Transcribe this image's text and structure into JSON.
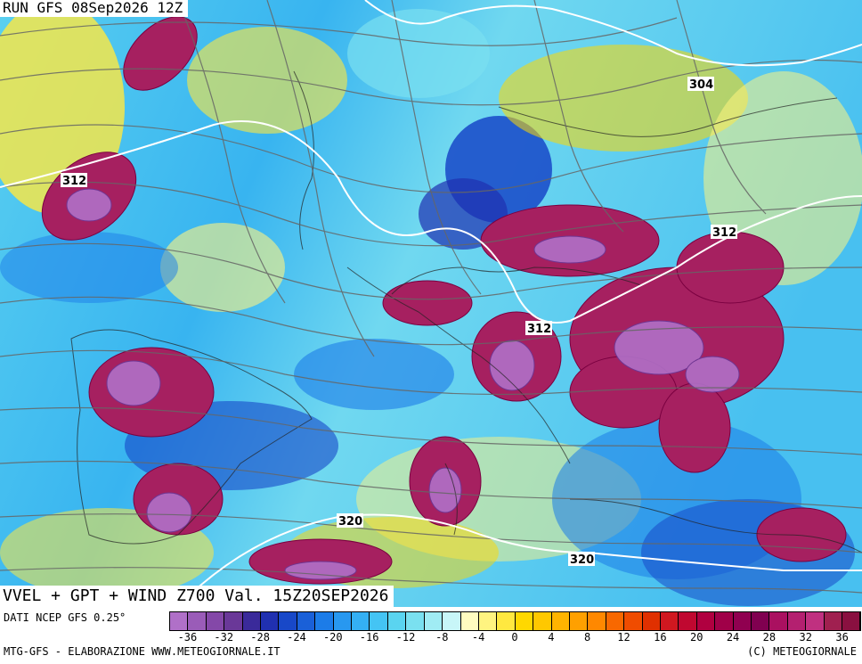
{
  "header": {
    "run_label": "RUN GFS 08Sep2026 12Z"
  },
  "title": {
    "text": "VVEL + GPT + WIND Z700 Val. 15Z20SEP2026"
  },
  "source": {
    "text": "DATI NCEP GFS 0.25°"
  },
  "credits": {
    "left": "MTG-GFS - ELABORAZIONE WWW.METEOGIORNALE.IT",
    "right": "(C) METEOGIORNALE"
  },
  "contour_labels": [
    "304",
    "312",
    "312",
    "312",
    "320",
    "320"
  ],
  "colorbar": {
    "ticks": [
      "-36",
      "-32",
      "-28",
      "-24",
      "-20",
      "-16",
      "-12",
      "-8",
      "-4",
      "0",
      "4",
      "8",
      "12",
      "16",
      "20",
      "24",
      "28",
      "32",
      "36"
    ],
    "colors": [
      "#b070c8",
      "#9a5cb8",
      "#8448a8",
      "#6a3898",
      "#3a2a9a",
      "#2030b0",
      "#1848c8",
      "#1a60d8",
      "#1c7ce8",
      "#2898f0",
      "#34b0f4",
      "#44c4f4",
      "#5ad4f0",
      "#7ae0f0",
      "#a0ecf4",
      "#c8f6f8",
      "#fffcc0",
      "#fff480",
      "#ffe840",
      "#ffd800",
      "#ffc800",
      "#ffb400",
      "#ffa000",
      "#ff8800",
      "#f86800",
      "#f04c00",
      "#e03000",
      "#d01820",
      "#c00830",
      "#b00040",
      "#a00048",
      "#900050",
      "#800050",
      "#aa1060",
      "#b42070",
      "#c03080",
      "#a02050",
      "#8a1040"
    ]
  }
}
